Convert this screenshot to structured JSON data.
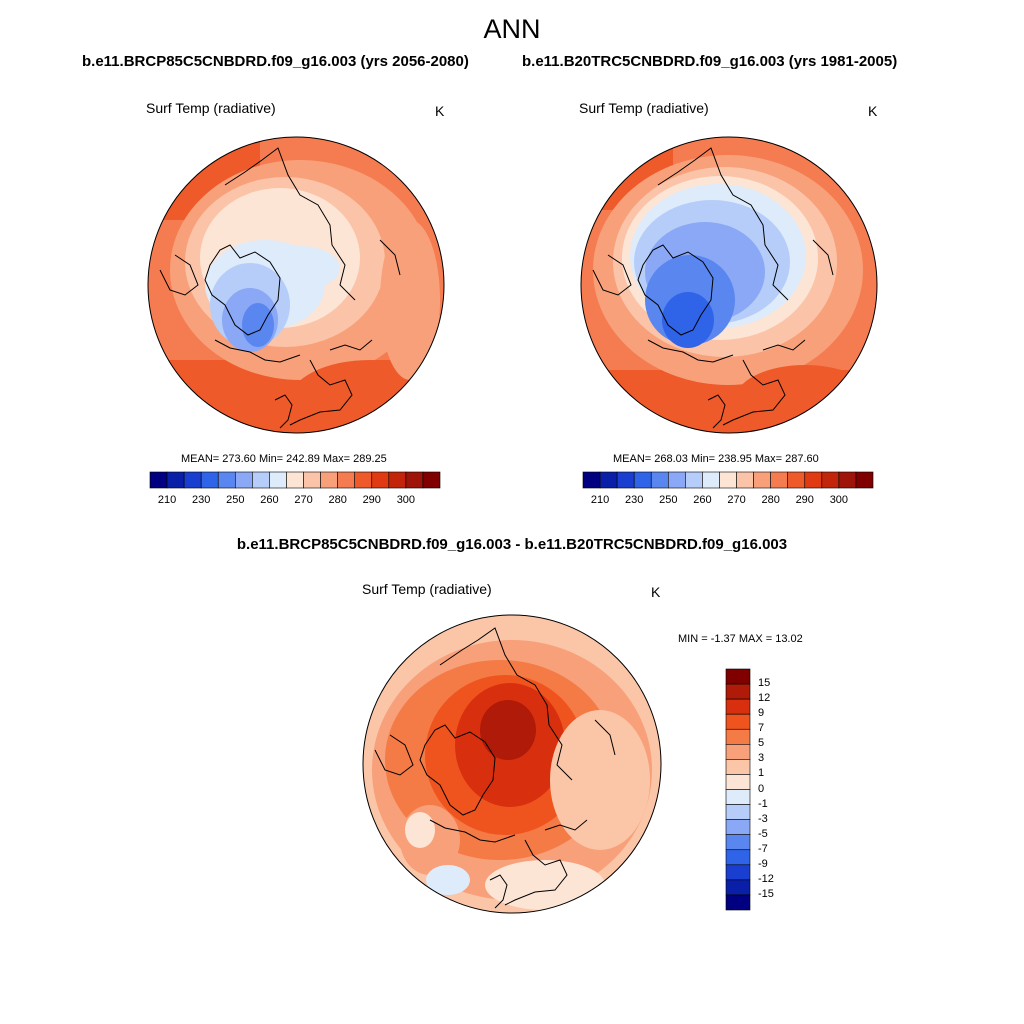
{
  "title": "ANN",
  "panels": [
    {
      "case": "b.e11.BRCP85C5CNBDRD.f09_g16.003 (yrs 2056-2080)",
      "variable": "Surf Temp (radiative)",
      "units": "K",
      "stats": "MEAN= 273.60  Min= 242.89  Max= 289.25"
    },
    {
      "case": "b.e11.B20TRC5CNBDRD.f09_g16.003 (yrs 1981-2005)",
      "variable": "Surf Temp (radiative)",
      "units": "K",
      "stats": "MEAN= 268.03  Min= 238.95  Max= 287.60"
    }
  ],
  "diff": {
    "case": "b.e11.BRCP85C5CNBDRD.f09_g16.003 - b.e11.B20TRC5CNBDRD.f09_g16.003",
    "variable": "Surf Temp (radiative)",
    "units": "K",
    "stats": "MIN =  -1.37 MAX =  13.02"
  },
  "abs_colorbar": {
    "colors": [
      "#000080",
      "#0a1fa8",
      "#1a3fd0",
      "#2f63e8",
      "#5a86f0",
      "#8aa8f5",
      "#b5cdf8",
      "#ddebfb",
      "#fde5d6",
      "#fbc4a8",
      "#f8a07a",
      "#f47c50",
      "#ee5a2a",
      "#e03a12",
      "#c2250a",
      "#9e1408",
      "#800000"
    ],
    "labels": [
      "210",
      "230",
      "250",
      "260",
      "270",
      "280",
      "290",
      "300"
    ]
  },
  "diff_colorbar": {
    "colors": [
      "#800000",
      "#b01a08",
      "#d8300e",
      "#f0541e",
      "#f47a46",
      "#f8a07a",
      "#fbc6a8",
      "#fde5d6",
      "#ddebfb",
      "#b5cdf8",
      "#8aa8f5",
      "#5a86f0",
      "#2f63e8",
      "#1a3fd0",
      "#0a1fa8",
      "#000080"
    ],
    "labels": [
      "15",
      "12",
      "9",
      "7",
      "5",
      "3",
      "1",
      "0",
      "-1",
      "-3",
      "-5",
      "-7",
      "-9",
      "-12",
      "-15"
    ]
  }
}
